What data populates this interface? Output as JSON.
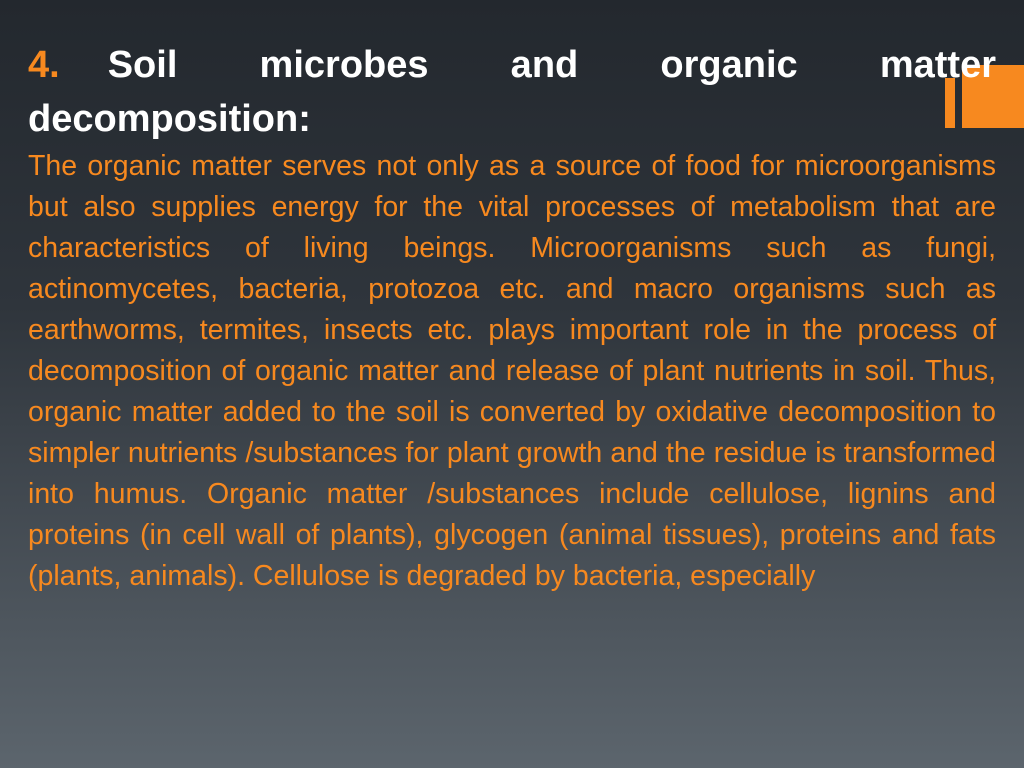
{
  "heading": {
    "number": "4.",
    "title": "Soil microbes and organic matter decomposition:"
  },
  "body": "The organic matter serves not only as a source of food for microorganisms but also supplies energy for the vital processes of metabolism that are characteristics of living beings. Microorganisms such as fungi, actinomycetes, bacteria, protozoa etc. and macro organisms such as earthworms, termites, insects etc. plays important role in the process of decomposition of organic matter and release of plant nutrients in soil. Thus, organic matter added to the soil is converted by oxidative decomposition to simpler nutrients /substances for plant growth and the residue is transformed into humus. Organic matter /substances include cellulose, lignins and proteins (in cell wall of plants), glycogen (animal tissues), proteins and fats (plants, animals). Cellulose is degraded by bacteria, especially"
}
